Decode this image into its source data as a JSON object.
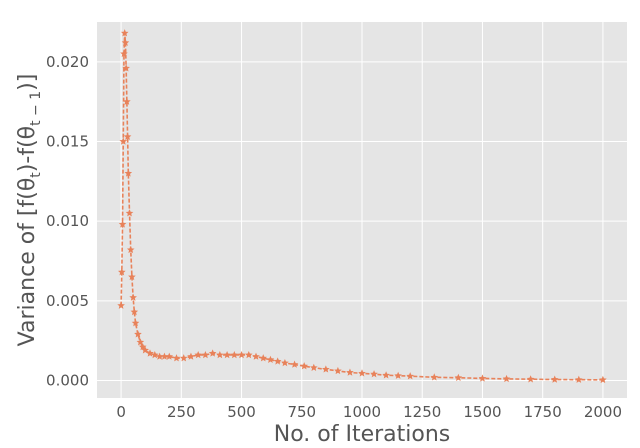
{
  "chart_data": {
    "type": "scatter",
    "style": "dashed line with star markers",
    "xlabel": "No. of Iterations",
    "ylabel": "Variance of [f(θₜ)-f(θₜ₋₁)]",
    "ylabel_parts": {
      "pre": "Variance of [f(θ",
      "sub1": "t",
      "mid": ")-f(θ",
      "sub2": "t − 1",
      "post": ")]"
    },
    "xlim": [
      -100,
      2100
    ],
    "ylim": [
      -0.0011,
      0.0225
    ],
    "x_ticks": [
      0,
      250,
      500,
      750,
      1000,
      1250,
      1500,
      1750,
      2000
    ],
    "y_ticks": [
      0.0,
      0.005,
      0.01,
      0.015,
      0.02
    ],
    "x_tick_labels": [
      "0",
      "250",
      "500",
      "750",
      "1000",
      "1250",
      "1500",
      "1750",
      "2000"
    ],
    "y_tick_labels": [
      "0.000",
      "0.005",
      "0.010",
      "0.015",
      "0.020"
    ],
    "grid": true,
    "colors": {
      "series": "#E8825A",
      "plot_background": "#E5E5E5",
      "grid": "#FFFFFF",
      "text": "#555555"
    },
    "series": [
      {
        "x": [
          0,
          3,
          6,
          9,
          12,
          15,
          18,
          21,
          24,
          27,
          30,
          35,
          40,
          45,
          50,
          55,
          60,
          70,
          80,
          90,
          100,
          120,
          140,
          160,
          180,
          200,
          230,
          260,
          290,
          320,
          350,
          380,
          410,
          440,
          470,
          500,
          530,
          560,
          590,
          620,
          650,
          680,
          720,
          760,
          800,
          850,
          900,
          950,
          1000,
          1050,
          1100,
          1150,
          1200,
          1300,
          1400,
          1500,
          1600,
          1700,
          1800,
          1900,
          2000
        ],
        "y": [
          0.0047,
          0.0068,
          0.0098,
          0.015,
          0.0205,
          0.0218,
          0.0212,
          0.0196,
          0.0175,
          0.0153,
          0.013,
          0.0105,
          0.0082,
          0.0065,
          0.0052,
          0.0043,
          0.0036,
          0.0029,
          0.0024,
          0.0021,
          0.0019,
          0.0017,
          0.0016,
          0.0015,
          0.0015,
          0.0015,
          0.0014,
          0.0014,
          0.0015,
          0.0016,
          0.0016,
          0.0017,
          0.0016,
          0.0016,
          0.0016,
          0.0016,
          0.0016,
          0.0015,
          0.0014,
          0.0013,
          0.0012,
          0.0011,
          0.001,
          0.0009,
          0.0008,
          0.0007,
          0.0006,
          0.0005,
          0.00045,
          0.0004,
          0.00033,
          0.0003,
          0.00027,
          0.0002,
          0.00017,
          0.00013,
          0.0001,
          8e-05,
          6e-05,
          5e-05,
          4e-05
        ]
      }
    ]
  }
}
